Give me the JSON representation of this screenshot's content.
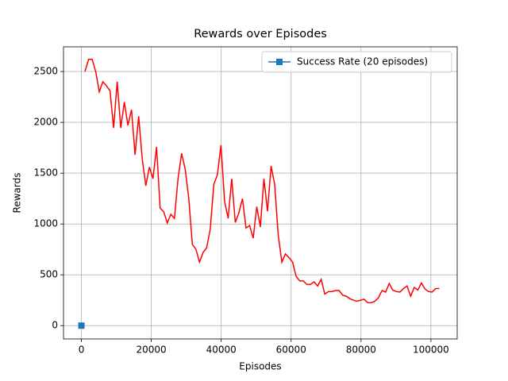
{
  "chart_data": {
    "type": "line",
    "title": "Rewards over Episodes",
    "x_label": "Episodes",
    "y_label": "Rewards",
    "xlim": [
      -5120,
      107520
    ],
    "ylim": [
      -131,
      2743
    ],
    "xticks": [
      0,
      20000,
      40000,
      60000,
      80000,
      100000
    ],
    "yticks": [
      0,
      500,
      1000,
      1500,
      2000,
      2500
    ],
    "grid": true,
    "legend": "upper right",
    "series": [
      {
        "name": "Success Rate (20 episodes)",
        "color": "#1f77b4",
        "marker": "square",
        "x": [
          0
        ],
        "values": [
          0
        ]
      },
      {
        "color": "#ff0000",
        "x": [
          1024,
          2048,
          3072,
          4096,
          5120,
          6144,
          7168,
          8192,
          9216,
          10240,
          11264,
          12288,
          13312,
          14336,
          15360,
          16384,
          17408,
          18432,
          19456,
          20480,
          21504,
          22528,
          23552,
          24576,
          25600,
          26624,
          27648,
          28672,
          29696,
          30720,
          31744,
          32768,
          33792,
          34816,
          35840,
          36864,
          37888,
          38912,
          39936,
          40960,
          41984,
          43008,
          44032,
          45056,
          46080,
          47104,
          48128,
          49152,
          50176,
          51200,
          52224,
          53248,
          54272,
          55296,
          56320,
          57344,
          58368,
          59392,
          60416,
          61440,
          62464,
          63488,
          64512,
          65536,
          66560,
          67584,
          68608,
          69632,
          70656,
          71680,
          72704,
          73728,
          74752,
          75776,
          76800,
          77824,
          78848,
          79872,
          80896,
          81920,
          82944,
          83968,
          84992,
          86016,
          87040,
          88064,
          89088,
          90112,
          91136,
          92160,
          93184,
          94208,
          95232,
          96256,
          97280,
          98304,
          99328,
          100352,
          101376,
          102400
        ],
        "values": [
          2500,
          2620,
          2620,
          2500,
          2300,
          2400,
          2360,
          2310,
          1945,
          2400,
          1945,
          2200,
          1970,
          2125,
          1680,
          2060,
          1640,
          1375,
          1560,
          1445,
          1760,
          1155,
          1120,
          1010,
          1095,
          1055,
          1445,
          1695,
          1540,
          1250,
          800,
          750,
          625,
          720,
          765,
          950,
          1390,
          1485,
          1775,
          1225,
          1055,
          1445,
          1015,
          1110,
          1250,
          960,
          985,
          860,
          1170,
          970,
          1445,
          1125,
          1570,
          1390,
          890,
          625,
          705,
          670,
          625,
          485,
          440,
          440,
          405,
          405,
          430,
          390,
          455,
          310,
          335,
          335,
          345,
          345,
          300,
          290,
          265,
          250,
          240,
          250,
          260,
          225,
          225,
          240,
          275,
          345,
          330,
          415,
          350,
          335,
          330,
          365,
          390,
          290,
          375,
          350,
          420,
          360,
          335,
          330,
          365,
          365
        ]
      }
    ]
  }
}
